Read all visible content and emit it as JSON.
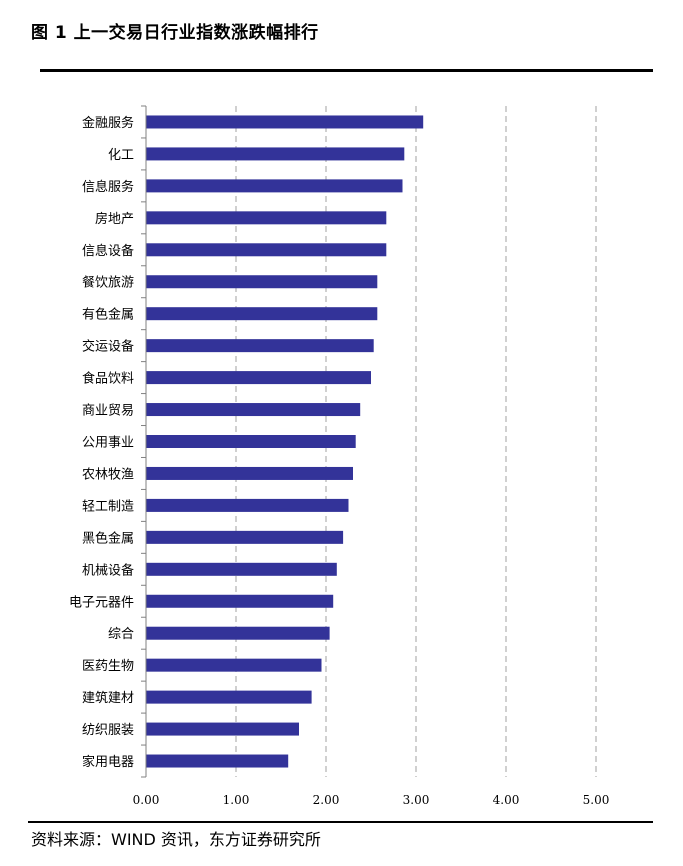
{
  "figure": {
    "title": "图 1  上一交易日行业指数涨跌幅排行",
    "source": "资料来源：WIND 资讯，东方证券研究所"
  },
  "chart_data": {
    "type": "bar",
    "orientation": "horizontal",
    "title": "图 1  上一交易日行业指数涨跌幅排行",
    "xlabel": "",
    "ylabel": "",
    "xlim": [
      0,
      5
    ],
    "xticks": [
      0,
      1,
      2,
      3,
      4,
      5
    ],
    "xtick_labels": [
      "0.00",
      "1.00",
      "2.00",
      "3.00",
      "4.00",
      "5.00"
    ],
    "grid": "vertical dashed",
    "legend": "none",
    "bar_color": "#333399",
    "categories": [
      "金融服务",
      "化工",
      "信息服务",
      "房地产",
      "信息设备",
      "餐饮旅游",
      "有色金属",
      "交运设备",
      "食品饮料",
      "商业贸易",
      "公用事业",
      "农林牧渔",
      "轻工制造",
      "黑色金属",
      "机械设备",
      "电子元器件",
      "综合",
      "医药生物",
      "建筑建材",
      "纺织服装",
      "家用电器"
    ],
    "values": [
      3.08,
      2.87,
      2.85,
      2.67,
      2.67,
      2.57,
      2.57,
      2.53,
      2.5,
      2.38,
      2.33,
      2.3,
      2.25,
      2.19,
      2.12,
      2.08,
      2.04,
      1.95,
      1.84,
      1.7,
      1.58
    ]
  }
}
